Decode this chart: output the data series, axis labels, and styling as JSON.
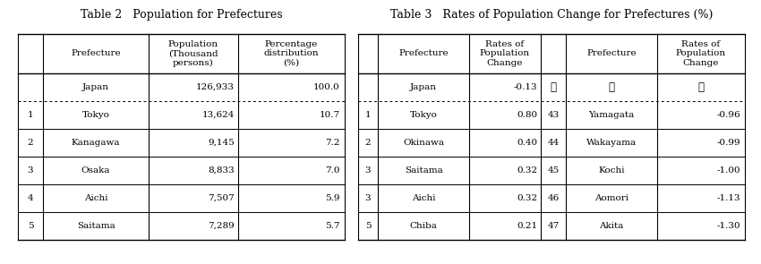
{
  "table2_title": "Table 2   Population for Prefectures",
  "table3_title": "Table 3   Rates of Population Change for Prefectures (%)",
  "table2_headers": [
    "",
    "Prefecture",
    "Population\n(Thousand\npersons)",
    "Percentage\ndistribution\n(%)"
  ],
  "table2_rows": [
    [
      "",
      "Japan",
      "126,933",
      "100.0"
    ],
    [
      "1",
      "Tokyo",
      "13,624",
      "10.7"
    ],
    [
      "2",
      "Kanagawa",
      "9,145",
      "7.2"
    ],
    [
      "3",
      "Osaka",
      "8,833",
      "7.0"
    ],
    [
      "4",
      "Aichi",
      "7,507",
      "5.9"
    ],
    [
      "5",
      "Saitama",
      "7,289",
      "5.7"
    ]
  ],
  "table3_headers": [
    "",
    "Prefecture",
    "Rates of\nPopulation\nChange",
    "",
    "Prefecture",
    "Rates of\nPopulation\nChange"
  ],
  "table3_rows": [
    [
      "",
      "Japan",
      "-0.13",
      ":",
      ":",
      ":"
    ],
    [
      "1",
      "Tokyo",
      "0.80",
      "43",
      "Yamagata",
      "-0.96"
    ],
    [
      "2",
      "Okinawa",
      "0.40",
      "44",
      "Wakayama",
      "-0.99"
    ],
    [
      "3",
      "Saitama",
      "0.32",
      "45",
      "Kochi",
      "-1.00"
    ],
    [
      "3",
      "Aichi",
      "0.32",
      "46",
      "Aomori",
      "-1.13"
    ],
    [
      "5",
      "Chiba",
      "0.21",
      "47",
      "Akita",
      "-1.30"
    ]
  ],
  "bg_color": "#ffffff",
  "text_color": "#000000",
  "title_color": "#000000",
  "font_size": 7.5,
  "title_font_size": 9.0
}
